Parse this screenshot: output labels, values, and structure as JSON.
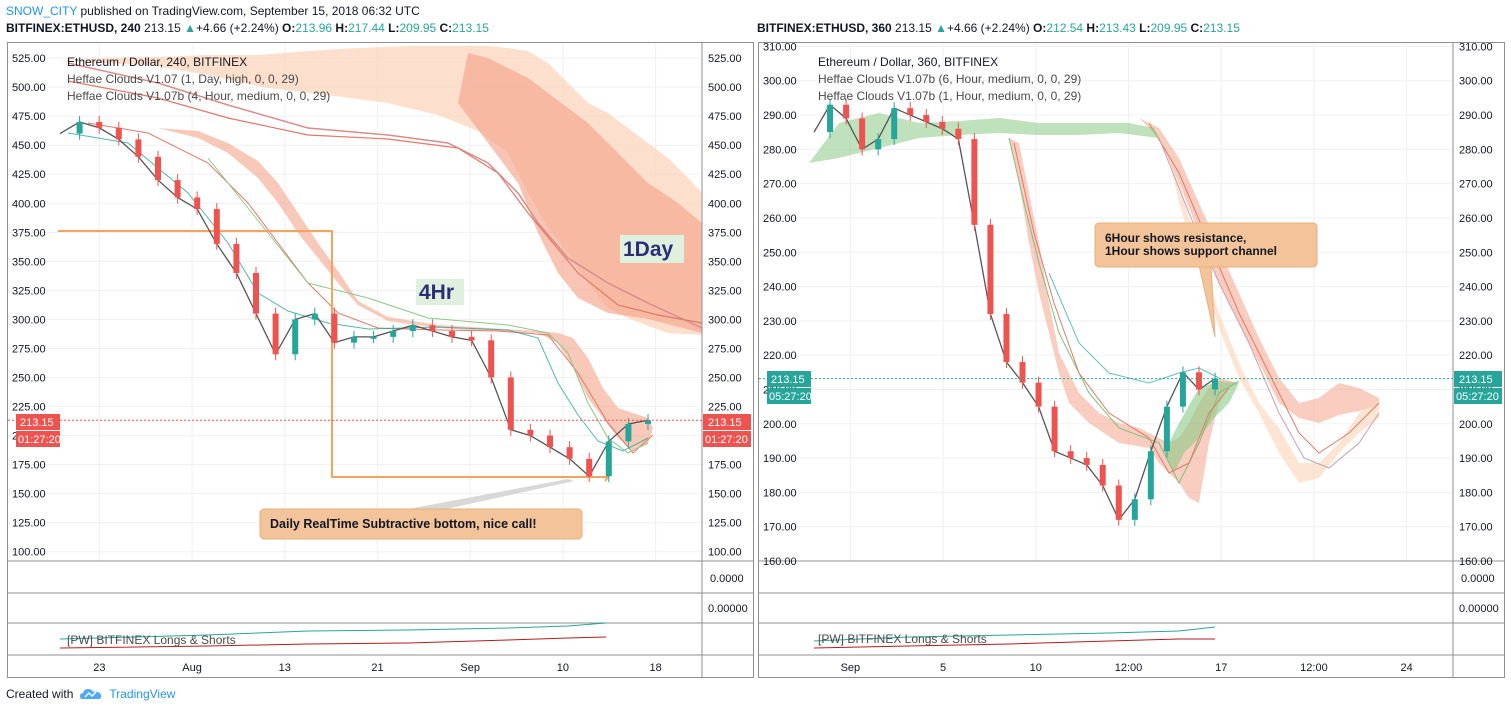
{
  "header": {
    "user": "SNOW_CITY",
    "published_text": "published on TradingView.com, September 15, 2018 06:32 UTC"
  },
  "left": {
    "symbol": "BITFINEX:ETHUSD, 240",
    "last": "213.15",
    "change": "+4.66 (+2.24%)",
    "O": "213.96",
    "H": "217.44",
    "L": "209.95",
    "C": "213.15",
    "chart_title": "Ethereum / Dollar, 240, BITFINEX",
    "indicators": [
      "Heffae Clouds V1.07 (1, Day, high, 0, 0, 29)",
      "Heffae Clouds V1.07b (4, Hour, medium, 0, 0, 29)"
    ],
    "price_tag": "213.15",
    "countdown": "01:27:20",
    "label_4hr": "4Hr",
    "label_1day": "1Day",
    "callout": "Daily RealTime Subtractive bottom, nice call!",
    "sub1": "0.0000",
    "sub2": "0.00000",
    "sub3_label": "[PW] BITFINEX Longs & Shorts",
    "x_ticks": [
      "23",
      "Aug",
      "13",
      "21",
      "Sep",
      "10",
      "18"
    ]
  },
  "right": {
    "symbol": "BITFINEX:ETHUSD, 360",
    "last": "213.15",
    "change": "+4.66 (+2.24%)",
    "O": "212.54",
    "H": "213.43",
    "L": "209.95",
    "C": "213.15",
    "chart_title": "Ethereum / Dollar, 360, BITFINEX",
    "indicators": [
      "Heffae Clouds V1.07b (6, Hour, medium, 0, 0, 29)",
      "Heffae Clouds V1.07b (1, Hour, medium, 0, 0, 29)"
    ],
    "price_tag": "213.15",
    "countdown": "05:27:20",
    "callout_line1": "6Hour shows resistance,",
    "callout_line2": "1Hour shows support channel",
    "sub1": "0.0000",
    "sub2": "0.00000",
    "sub3_label": "[PW] BITFINEX Longs & Shorts",
    "x_ticks": [
      "Sep",
      "5",
      "10",
      "12:00",
      "17",
      "12:00",
      "24"
    ]
  },
  "footer": {
    "created_with": "Created with",
    "brand": "TradingView"
  },
  "colors": {
    "bull": "#26a69a",
    "bear": "#ef5350",
    "cloud_red": "#f4a48a",
    "cloud_orange": "#fbd3b8",
    "cloud_green": "#8bc985",
    "callout": "#f3c39a",
    "callout_border": "#e8b07c",
    "orange_line": "#f7a35c",
    "brand": "#2196f3"
  },
  "chart_data": [
    {
      "type": "line",
      "title": "Ethereum / Dollar, 240, BITFINEX",
      "y_ticks": [
        525,
        500,
        475,
        450,
        425,
        400,
        375,
        350,
        325,
        300,
        275,
        250,
        225,
        200,
        175,
        150,
        125,
        100
      ],
      "ylim": [
        92,
        538
      ],
      "x_labels": [
        "23",
        "Aug",
        "13",
        "21",
        "Sep",
        "10",
        "18"
      ],
      "grid": true,
      "series": [
        {
          "values": [
            460,
            470,
            465,
            455,
            440,
            420,
            405,
            395,
            365,
            340,
            305,
            270,
            300,
            305,
            280,
            285,
            285,
            290,
            295,
            290,
            285,
            282,
            250,
            205,
            200,
            190,
            180,
            165,
            195,
            210,
            213.15
          ]
        }
      ],
      "last_price": 213.15
    },
    {
      "type": "line",
      "title": "Ethereum / Dollar, 360, BITFINEX",
      "y_ticks": [
        310,
        300,
        290,
        280,
        270,
        260,
        250,
        240,
        230,
        220,
        210,
        200,
        190,
        180,
        170,
        160
      ],
      "ylim": [
        160,
        311
      ],
      "x_labels": [
        "Sep",
        "5",
        "10",
        "12:00",
        "17",
        "12:00",
        "24"
      ],
      "grid": true,
      "series": [
        {
          "values": [
            285,
            293,
            289,
            280,
            283,
            292,
            290,
            288,
            286,
            283,
            258,
            232,
            218,
            212,
            205,
            192,
            190,
            188,
            182,
            172,
            178,
            192,
            205,
            215,
            210,
            213.15
          ]
        }
      ],
      "last_price": 213.15
    }
  ]
}
